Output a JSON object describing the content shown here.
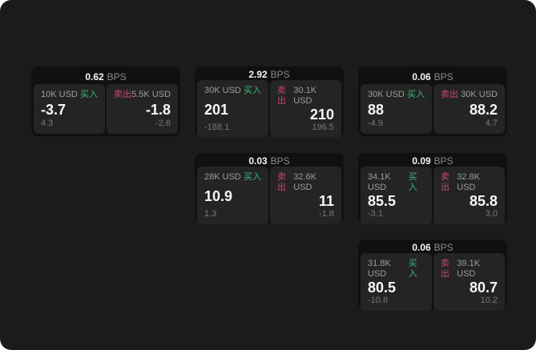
{
  "labels": {
    "buy": "买入",
    "sell": "卖出",
    "bps_unit": "BPS"
  },
  "cards": [
    {
      "col": 1,
      "row": 1,
      "bps": "0.62",
      "buy": {
        "amount": "10K USD",
        "price": "-3.7",
        "delta": "4.3"
      },
      "sell": {
        "amount": "5.5K USD",
        "price": "-1.8",
        "delta": "-2.6"
      }
    },
    {
      "col": 2,
      "row": 1,
      "bps": "2.92",
      "buy": {
        "amount": "30K USD",
        "price": "201",
        "delta": "-188.1"
      },
      "sell": {
        "amount": "30.1K USD",
        "price": "210",
        "delta": "196.5"
      }
    },
    {
      "col": 3,
      "row": 1,
      "bps": "0.06",
      "buy": {
        "amount": "30K USD",
        "price": "88",
        "delta": "-4.9"
      },
      "sell": {
        "amount": "30K USD",
        "price": "88.2",
        "delta": "4.7"
      }
    },
    {
      "col": 2,
      "row": 2,
      "bps": "0.03",
      "buy": {
        "amount": "28K USD",
        "price": "10.9",
        "delta": "1.3"
      },
      "sell": {
        "amount": "32.6K USD",
        "price": "11",
        "delta": "-1.8"
      }
    },
    {
      "col": 3,
      "row": 2,
      "bps": "0.09",
      "buy": {
        "amount": "34.1K USD",
        "price": "85.5",
        "delta": "-3.1"
      },
      "sell": {
        "amount": "32.8K USD",
        "price": "85.8",
        "delta": "3.0"
      }
    },
    {
      "col": 3,
      "row": 3,
      "bps": "0.06",
      "buy": {
        "amount": "31.8K USD",
        "price": "80.5",
        "delta": "-10.8"
      },
      "sell": {
        "amount": "39.1K USD",
        "price": "80.7",
        "delta": "10.2"
      }
    }
  ],
  "colors": {
    "panel_bg": "#1b1b1b",
    "card_bg": "#101010",
    "subcard_bg": "#242424",
    "buy_green": "#3cb878",
    "sell_red": "#c9486a"
  }
}
